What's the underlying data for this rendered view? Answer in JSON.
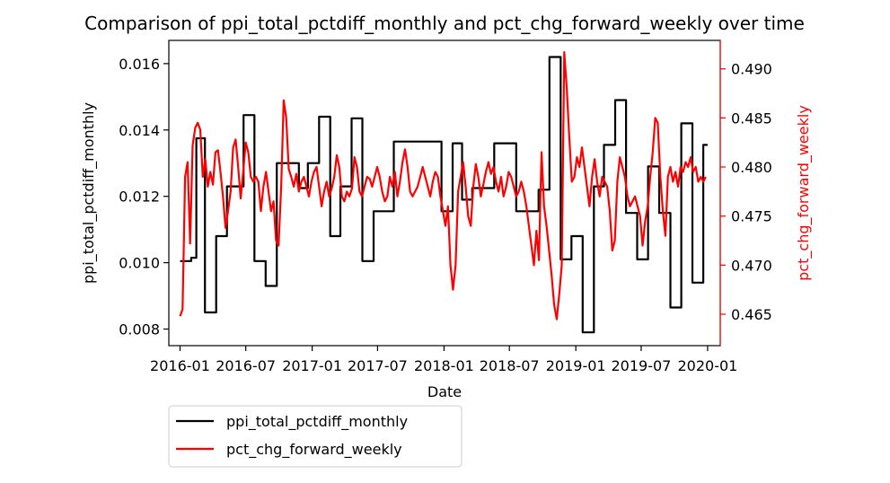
{
  "chart_data": {
    "type": "line",
    "title": "Comparison of ppi_total_pctdiff_monthly and pct_chg_forward_weekly over time",
    "xlabel": "Date",
    "ylabel_left": "ppi_total_pctdiff_monthly",
    "ylabel_right": "pct_chg_forward_weekly",
    "xlim": [
      "2015-12-01",
      "2020-02-05"
    ],
    "x_ticks": [
      "2016-01",
      "2016-07",
      "2017-01",
      "2017-07",
      "2018-01",
      "2018-07",
      "2019-01",
      "2019-07",
      "2020-01"
    ],
    "ylim_left": [
      0.0075,
      0.0167
    ],
    "yticks_left": [
      "0.008",
      "0.010",
      "0.012",
      "0.014",
      "0.016"
    ],
    "ylim_right": [
      0.4618,
      0.4929
    ],
    "yticks_right": [
      "0.465",
      "0.470",
      "0.475",
      "0.480",
      "0.485",
      "0.490"
    ],
    "legend_position": "below-left",
    "colors": {
      "ppi": "#000000",
      "pct": "#ff0000"
    },
    "series": [
      {
        "name": "ppi_total_pctdiff_monthly",
        "axis": "left",
        "color": "#000000",
        "style": "step",
        "points": [
          [
            "2016-01-01",
            0.01005
          ],
          [
            "2016-02-01",
            0.01015
          ],
          [
            "2016-02-15",
            0.01375
          ],
          [
            "2016-03-10",
            0.0085
          ],
          [
            "2016-04-10",
            0.0108
          ],
          [
            "2016-05-10",
            0.0123
          ],
          [
            "2016-06-25",
            0.01445
          ],
          [
            "2016-07-25",
            0.01005
          ],
          [
            "2016-08-25",
            0.0093
          ],
          [
            "2016-09-25",
            0.013
          ],
          [
            "2016-11-25",
            0.01225
          ],
          [
            "2016-12-20",
            0.013
          ],
          [
            "2017-01-20",
            0.0144
          ],
          [
            "2017-02-20",
            0.0108
          ],
          [
            "2017-03-20",
            0.0123
          ],
          [
            "2017-04-20",
            0.01435
          ],
          [
            "2017-05-20",
            0.01005
          ],
          [
            "2017-06-20",
            0.01155
          ],
          [
            "2017-08-15",
            0.01365
          ],
          [
            "2017-12-25",
            0.01155
          ],
          [
            "2018-01-25",
            0.0136
          ],
          [
            "2018-02-20",
            0.0119
          ],
          [
            "2018-03-20",
            0.01225
          ],
          [
            "2018-05-20",
            0.0136
          ],
          [
            "2018-07-20",
            0.01155
          ],
          [
            "2018-09-20",
            0.0122
          ],
          [
            "2018-10-20",
            0.0162
          ],
          [
            "2018-11-20",
            0.0101
          ],
          [
            "2018-12-20",
            0.0108
          ],
          [
            "2019-01-20",
            0.0079
          ],
          [
            "2019-02-20",
            0.0123
          ],
          [
            "2019-03-20",
            0.01355
          ],
          [
            "2019-04-20",
            0.0149
          ],
          [
            "2019-05-20",
            0.0115
          ],
          [
            "2019-06-20",
            0.0101
          ],
          [
            "2019-07-20",
            0.0129
          ],
          [
            "2019-08-20",
            0.0115
          ],
          [
            "2019-09-20",
            0.00865
          ],
          [
            "2019-10-20",
            0.0142
          ],
          [
            "2019-11-20",
            0.0094
          ],
          [
            "2019-12-20",
            0.01355
          ],
          [
            "2020-01-01",
            0.01355
          ]
        ]
      },
      {
        "name": "pct_chg_forward_weekly",
        "axis": "right",
        "color": "#ff0000",
        "style": "line",
        "points": [
          [
            "2016-01-01",
            0.4648
          ],
          [
            "2016-01-08",
            0.4655
          ],
          [
            "2016-01-15",
            0.479
          ],
          [
            "2016-01-22",
            0.4805
          ],
          [
            "2016-01-29",
            0.4722
          ],
          [
            "2016-02-05",
            0.4822
          ],
          [
            "2016-02-12",
            0.484
          ],
          [
            "2016-02-19",
            0.4845
          ],
          [
            "2016-02-26",
            0.4838
          ],
          [
            "2016-03-04",
            0.479
          ],
          [
            "2016-03-11",
            0.4808
          ],
          [
            "2016-03-18",
            0.478
          ],
          [
            "2016-03-25",
            0.4795
          ],
          [
            "2016-04-01",
            0.4782
          ],
          [
            "2016-04-08",
            0.4815
          ],
          [
            "2016-04-15",
            0.4817
          ],
          [
            "2016-04-22",
            0.4795
          ],
          [
            "2016-04-29",
            0.477
          ],
          [
            "2016-05-06",
            0.4738
          ],
          [
            "2016-05-13",
            0.4755
          ],
          [
            "2016-05-20",
            0.4775
          ],
          [
            "2016-05-27",
            0.482
          ],
          [
            "2016-06-03",
            0.4828
          ],
          [
            "2016-06-10",
            0.48
          ],
          [
            "2016-06-17",
            0.4768
          ],
          [
            "2016-06-24",
            0.4795
          ],
          [
            "2016-07-01",
            0.4825
          ],
          [
            "2016-07-08",
            0.4815
          ],
          [
            "2016-07-15",
            0.479
          ],
          [
            "2016-07-22",
            0.4785
          ],
          [
            "2016-07-29",
            0.479
          ],
          [
            "2016-08-05",
            0.4785
          ],
          [
            "2016-08-12",
            0.4755
          ],
          [
            "2016-08-19",
            0.478
          ],
          [
            "2016-08-26",
            0.4795
          ],
          [
            "2016-09-02",
            0.4775
          ],
          [
            "2016-09-09",
            0.4755
          ],
          [
            "2016-09-16",
            0.4765
          ],
          [
            "2016-09-23",
            0.4725
          ],
          [
            "2016-09-30",
            0.472
          ],
          [
            "2016-10-07",
            0.478
          ],
          [
            "2016-10-14",
            0.4868
          ],
          [
            "2016-10-21",
            0.485
          ],
          [
            "2016-10-28",
            0.4798
          ],
          [
            "2016-11-04",
            0.479
          ],
          [
            "2016-11-11",
            0.478
          ],
          [
            "2016-11-18",
            0.4793
          ],
          [
            "2016-11-25",
            0.4775
          ],
          [
            "2016-12-02",
            0.4785
          ],
          [
            "2016-12-09",
            0.479
          ],
          [
            "2016-12-16",
            0.478
          ],
          [
            "2016-12-23",
            0.477
          ],
          [
            "2016-12-30",
            0.4785
          ],
          [
            "2017-01-06",
            0.4795
          ],
          [
            "2017-01-13",
            0.48
          ],
          [
            "2017-01-20",
            0.478
          ],
          [
            "2017-01-27",
            0.476
          ],
          [
            "2017-02-03",
            0.4775
          ],
          [
            "2017-02-10",
            0.4785
          ],
          [
            "2017-02-17",
            0.477
          ],
          [
            "2017-02-24",
            0.4778
          ],
          [
            "2017-03-03",
            0.479
          ],
          [
            "2017-03-10",
            0.4812
          ],
          [
            "2017-03-17",
            0.48
          ],
          [
            "2017-03-24",
            0.477
          ],
          [
            "2017-03-31",
            0.4765
          ],
          [
            "2017-04-07",
            0.4775
          ],
          [
            "2017-04-14",
            0.477
          ],
          [
            "2017-04-21",
            0.4778
          ],
          [
            "2017-04-28",
            0.481
          ],
          [
            "2017-05-05",
            0.48
          ],
          [
            "2017-05-12",
            0.4775
          ],
          [
            "2017-05-19",
            0.477
          ],
          [
            "2017-05-26",
            0.478
          ],
          [
            "2017-06-02",
            0.479
          ],
          [
            "2017-06-09",
            0.4788
          ],
          [
            "2017-06-16",
            0.478
          ],
          [
            "2017-06-23",
            0.479
          ],
          [
            "2017-06-30",
            0.48
          ],
          [
            "2017-07-07",
            0.479
          ],
          [
            "2017-07-14",
            0.4775
          ],
          [
            "2017-07-21",
            0.4765
          ],
          [
            "2017-07-28",
            0.477
          ],
          [
            "2017-08-04",
            0.479
          ],
          [
            "2017-08-11",
            0.478
          ],
          [
            "2017-08-18",
            0.4795
          ],
          [
            "2017-08-25",
            0.477
          ],
          [
            "2017-09-01",
            0.4785
          ],
          [
            "2017-09-08",
            0.4805
          ],
          [
            "2017-09-15",
            0.4818
          ],
          [
            "2017-09-22",
            0.48
          ],
          [
            "2017-09-29",
            0.4775
          ],
          [
            "2017-10-06",
            0.477
          ],
          [
            "2017-10-13",
            0.4775
          ],
          [
            "2017-10-20",
            0.478
          ],
          [
            "2017-10-27",
            0.479
          ],
          [
            "2017-11-03",
            0.48
          ],
          [
            "2017-11-10",
            0.479
          ],
          [
            "2017-11-17",
            0.478
          ],
          [
            "2017-11-24",
            0.477
          ],
          [
            "2017-12-01",
            0.4785
          ],
          [
            "2017-12-08",
            0.4795
          ],
          [
            "2017-12-15",
            0.479
          ],
          [
            "2017-12-22",
            0.477
          ],
          [
            "2017-12-29",
            0.4755
          ],
          [
            "2018-01-05",
            0.474
          ],
          [
            "2018-01-12",
            0.476
          ],
          [
            "2018-01-19",
            0.47
          ],
          [
            "2018-01-26",
            0.4675
          ],
          [
            "2018-02-02",
            0.47
          ],
          [
            "2018-02-09",
            0.4775
          ],
          [
            "2018-02-16",
            0.479
          ],
          [
            "2018-02-23",
            0.4805
          ],
          [
            "2018-03-02",
            0.478
          ],
          [
            "2018-03-09",
            0.475
          ],
          [
            "2018-03-16",
            0.474
          ],
          [
            "2018-03-23",
            0.478
          ],
          [
            "2018-03-30",
            0.4803
          ],
          [
            "2018-04-06",
            0.479
          ],
          [
            "2018-04-13",
            0.477
          ],
          [
            "2018-04-20",
            0.4782
          ],
          [
            "2018-04-27",
            0.4795
          ],
          [
            "2018-05-04",
            0.4805
          ],
          [
            "2018-05-11",
            0.4793
          ],
          [
            "2018-05-18",
            0.48
          ],
          [
            "2018-05-25",
            0.4785
          ],
          [
            "2018-06-01",
            0.4775
          ],
          [
            "2018-06-08",
            0.479
          ],
          [
            "2018-06-15",
            0.477
          ],
          [
            "2018-06-22",
            0.478
          ],
          [
            "2018-06-29",
            0.4795
          ],
          [
            "2018-07-06",
            0.479
          ],
          [
            "2018-07-13",
            0.478
          ],
          [
            "2018-07-20",
            0.477
          ],
          [
            "2018-07-27",
            0.4775
          ],
          [
            "2018-08-03",
            0.4785
          ],
          [
            "2018-08-10",
            0.4775
          ],
          [
            "2018-08-17",
            0.476
          ],
          [
            "2018-08-24",
            0.474
          ],
          [
            "2018-08-31",
            0.472
          ],
          [
            "2018-09-07",
            0.47
          ],
          [
            "2018-09-14",
            0.4735
          ],
          [
            "2018-09-21",
            0.4705
          ],
          [
            "2018-09-28",
            0.4815
          ],
          [
            "2018-10-05",
            0.476
          ],
          [
            "2018-10-12",
            0.474
          ],
          [
            "2018-10-19",
            0.4715
          ],
          [
            "2018-10-26",
            0.469
          ],
          [
            "2018-11-02",
            0.466
          ],
          [
            "2018-11-09",
            0.4645
          ],
          [
            "2018-11-16",
            0.467
          ],
          [
            "2018-11-23",
            0.47
          ],
          [
            "2018-11-30",
            0.4917
          ],
          [
            "2018-12-07",
            0.488
          ],
          [
            "2018-12-14",
            0.483
          ],
          [
            "2018-12-21",
            0.4785
          ],
          [
            "2018-12-28",
            0.479
          ],
          [
            "2019-01-04",
            0.481
          ],
          [
            "2019-01-11",
            0.48
          ],
          [
            "2019-01-18",
            0.482
          ],
          [
            "2019-01-25",
            0.48
          ],
          [
            "2019-02-01",
            0.478
          ],
          [
            "2019-02-08",
            0.476
          ],
          [
            "2019-02-15",
            0.479
          ],
          [
            "2019-02-22",
            0.4808
          ],
          [
            "2019-03-01",
            0.4785
          ],
          [
            "2019-03-08",
            0.477
          ],
          [
            "2019-03-15",
            0.479
          ],
          [
            "2019-03-22",
            0.4785
          ],
          [
            "2019-03-29",
            0.478
          ],
          [
            "2019-04-05",
            0.4755
          ],
          [
            "2019-04-12",
            0.4715
          ],
          [
            "2019-04-19",
            0.4725
          ],
          [
            "2019-04-26",
            0.4785
          ],
          [
            "2019-05-03",
            0.481
          ],
          [
            "2019-05-10",
            0.48
          ],
          [
            "2019-05-17",
            0.479
          ],
          [
            "2019-05-24",
            0.477
          ],
          [
            "2019-05-31",
            0.476
          ],
          [
            "2019-06-07",
            0.4765
          ],
          [
            "2019-06-14",
            0.477
          ],
          [
            "2019-06-21",
            0.476
          ],
          [
            "2019-06-28",
            0.475
          ],
          [
            "2019-07-05",
            0.472
          ],
          [
            "2019-07-12",
            0.4745
          ],
          [
            "2019-07-19",
            0.476
          ],
          [
            "2019-07-26",
            0.479
          ],
          [
            "2019-08-02",
            0.4815
          ],
          [
            "2019-08-09",
            0.485
          ],
          [
            "2019-08-16",
            0.4845
          ],
          [
            "2019-08-23",
            0.479
          ],
          [
            "2019-08-30",
            0.4755
          ],
          [
            "2019-09-06",
            0.473
          ],
          [
            "2019-09-13",
            0.479
          ],
          [
            "2019-09-20",
            0.48
          ],
          [
            "2019-09-27",
            0.4785
          ],
          [
            "2019-10-04",
            0.4795
          ],
          [
            "2019-10-11",
            0.478
          ],
          [
            "2019-10-18",
            0.48
          ],
          [
            "2019-10-25",
            0.4795
          ],
          [
            "2019-11-01",
            0.4805
          ],
          [
            "2019-11-08",
            0.48
          ],
          [
            "2019-11-15",
            0.481
          ],
          [
            "2019-11-22",
            0.4795
          ],
          [
            "2019-11-29",
            0.48
          ],
          [
            "2019-12-06",
            0.4785
          ],
          [
            "2019-12-13",
            0.479
          ],
          [
            "2019-12-20",
            0.4785
          ],
          [
            "2019-12-27",
            0.479
          ]
        ]
      }
    ]
  }
}
